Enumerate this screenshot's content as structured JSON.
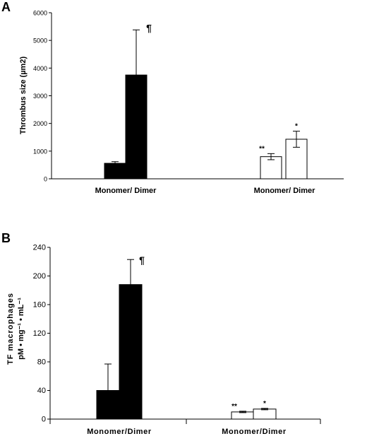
{
  "chart_data": [
    {
      "type": "bar",
      "panel_label": "A",
      "ylabel": "Thrombus size (µm2)",
      "ylim": [
        0,
        6000
      ],
      "yticks": [
        "0",
        "1000",
        "2000",
        "3000",
        "4000",
        "5000",
        "6000"
      ],
      "category_labels": [
        "Monomer/ Dimer",
        "Monomer/ Dimer"
      ],
      "bars": [
        {
          "group": 0,
          "fill": "#000000",
          "value": 560,
          "err": 60,
          "annotation": ""
        },
        {
          "group": 0,
          "fill": "#000000",
          "value": 3750,
          "err": 1630,
          "annotation": "¶"
        },
        {
          "group": 1,
          "fill": "#ffffff",
          "value": 800,
          "err": 110,
          "annotation": "**"
        },
        {
          "group": 1,
          "fill": "#ffffff",
          "value": 1430,
          "err": 290,
          "annotation": "*"
        }
      ]
    },
    {
      "type": "bar",
      "panel_label": "B",
      "ylabel_line1": "TF macrophages",
      "ylabel_line2": "pM • mg⁻¹ • mL⁻¹",
      "ylim": [
        0,
        240
      ],
      "yticks": [
        "0",
        "40",
        "80",
        "120",
        "160",
        "200",
        "240"
      ],
      "category_labels": [
        "Monomer/Dimer",
        "Monomer/Dimer"
      ],
      "bars": [
        {
          "group": 0,
          "fill": "#000000",
          "value": 40,
          "err": 37,
          "annotation": ""
        },
        {
          "group": 0,
          "fill": "#000000",
          "value": 188,
          "err": 35,
          "annotation": "¶"
        },
        {
          "group": 1,
          "fill": "#ffffff",
          "value": 10,
          "err": 1,
          "annotation": "**"
        },
        {
          "group": 1,
          "fill": "#ffffff",
          "value": 14,
          "err": 1,
          "annotation": "*"
        }
      ]
    }
  ]
}
